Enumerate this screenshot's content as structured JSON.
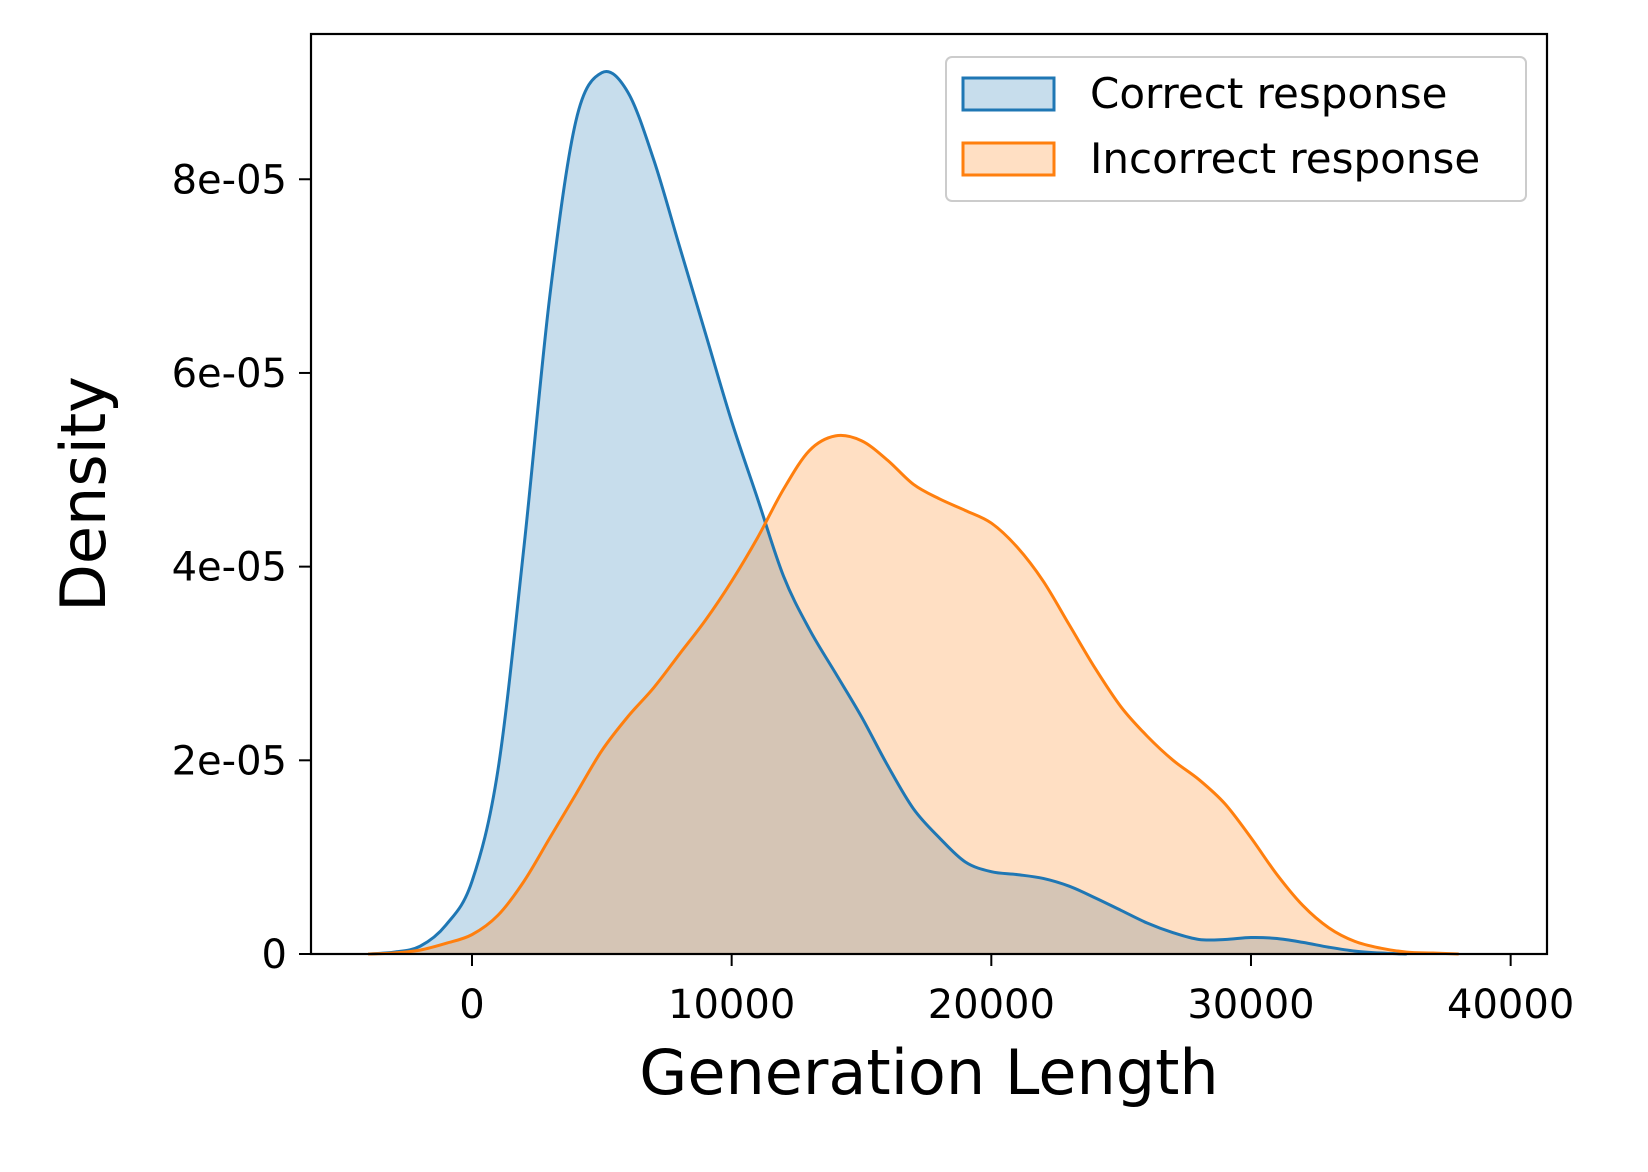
{
  "chart_data": {
    "type": "area",
    "xlabel": "Generation Length",
    "ylabel": "Density",
    "xlim": [
      -6200,
      41400
    ],
    "ylim": [
      0,
      9.5e-05
    ],
    "x_ticks": [
      {
        "value": 0,
        "label": "0"
      },
      {
        "value": 10000,
        "label": "10000"
      },
      {
        "value": 20000,
        "label": "20000"
      },
      {
        "value": 30000,
        "label": "30000"
      },
      {
        "value": 40000,
        "label": "40000"
      }
    ],
    "y_ticks": [
      {
        "value": 0,
        "label": "0"
      },
      {
        "value": 2e-05,
        "label": "2e-05"
      },
      {
        "value": 4e-05,
        "label": "4e-05"
      },
      {
        "value": 6e-05,
        "label": "6e-05"
      },
      {
        "value": 8e-05,
        "label": "8e-05"
      }
    ],
    "legend_position": "top-right",
    "grid": false,
    "series": [
      {
        "name": "Correct response",
        "line_color": "#1f77b4",
        "fill_color": "#1f77b4",
        "fill_opacity": 0.25,
        "points": [
          [
            -4000,
            0
          ],
          [
            -3000,
            2e-07
          ],
          [
            -2000,
            8e-07
          ],
          [
            -1000,
            3e-06
          ],
          [
            0,
            7.5e-06
          ],
          [
            1000,
            1.9e-05
          ],
          [
            2000,
            4.2e-05
          ],
          [
            3000,
            6.8e-05
          ],
          [
            4000,
            8.6e-05
          ],
          [
            5000,
            9.1e-05
          ],
          [
            6000,
            8.9e-05
          ],
          [
            7000,
            8.2e-05
          ],
          [
            8000,
            7.3e-05
          ],
          [
            9000,
            6.4e-05
          ],
          [
            10000,
            5.5e-05
          ],
          [
            11000,
            4.7e-05
          ],
          [
            12000,
            3.9e-05
          ],
          [
            13000,
            3.35e-05
          ],
          [
            14000,
            2.9e-05
          ],
          [
            15000,
            2.45e-05
          ],
          [
            16000,
            1.95e-05
          ],
          [
            17000,
            1.5e-05
          ],
          [
            18000,
            1.2e-05
          ],
          [
            19000,
            9.5e-06
          ],
          [
            20000,
            8.5e-06
          ],
          [
            21000,
            8.2e-06
          ],
          [
            22000,
            7.8e-06
          ],
          [
            23000,
            7e-06
          ],
          [
            24000,
            5.8e-06
          ],
          [
            25000,
            4.5e-06
          ],
          [
            26000,
            3.2e-06
          ],
          [
            27000,
            2.2e-06
          ],
          [
            28000,
            1.5e-06
          ],
          [
            29000,
            1.5e-06
          ],
          [
            30000,
            1.7e-06
          ],
          [
            31000,
            1.6e-06
          ],
          [
            32000,
            1.2e-06
          ],
          [
            33000,
            7e-07
          ],
          [
            34000,
            3e-07
          ],
          [
            35000,
            1e-07
          ],
          [
            36000,
            0
          ]
        ]
      },
      {
        "name": "Incorrect response",
        "line_color": "#ff7f0e",
        "fill_color": "#ff7f0e",
        "fill_opacity": 0.25,
        "points": [
          [
            -4000,
            0
          ],
          [
            -3000,
            1e-07
          ],
          [
            -2000,
            4e-07
          ],
          [
            -1000,
            1.1e-06
          ],
          [
            0,
            2e-06
          ],
          [
            1000,
            4e-06
          ],
          [
            2000,
            7.5e-06
          ],
          [
            3000,
            1.2e-05
          ],
          [
            4000,
            1.65e-05
          ],
          [
            5000,
            2.1e-05
          ],
          [
            6000,
            2.45e-05
          ],
          [
            7000,
            2.75e-05
          ],
          [
            8000,
            3.1e-05
          ],
          [
            9000,
            3.45e-05
          ],
          [
            10000,
            3.85e-05
          ],
          [
            11000,
            4.3e-05
          ],
          [
            12000,
            4.8e-05
          ],
          [
            13000,
            5.2e-05
          ],
          [
            14000,
            5.35e-05
          ],
          [
            15000,
            5.3e-05
          ],
          [
            16000,
            5.1e-05
          ],
          [
            17000,
            4.85e-05
          ],
          [
            18000,
            4.7e-05
          ],
          [
            19000,
            4.58e-05
          ],
          [
            20000,
            4.45e-05
          ],
          [
            21000,
            4.2e-05
          ],
          [
            22000,
            3.85e-05
          ],
          [
            23000,
            3.4e-05
          ],
          [
            24000,
            2.95e-05
          ],
          [
            25000,
            2.55e-05
          ],
          [
            26000,
            2.25e-05
          ],
          [
            27000,
            2e-05
          ],
          [
            28000,
            1.8e-05
          ],
          [
            29000,
            1.55e-05
          ],
          [
            30000,
            1.2e-05
          ],
          [
            31000,
            8.2e-06
          ],
          [
            32000,
            5e-06
          ],
          [
            33000,
            2.7e-06
          ],
          [
            34000,
            1.3e-06
          ],
          [
            35000,
            6e-07
          ],
          [
            36000,
            2e-07
          ],
          [
            37000,
            1e-07
          ],
          [
            38000,
            0
          ]
        ]
      }
    ]
  }
}
